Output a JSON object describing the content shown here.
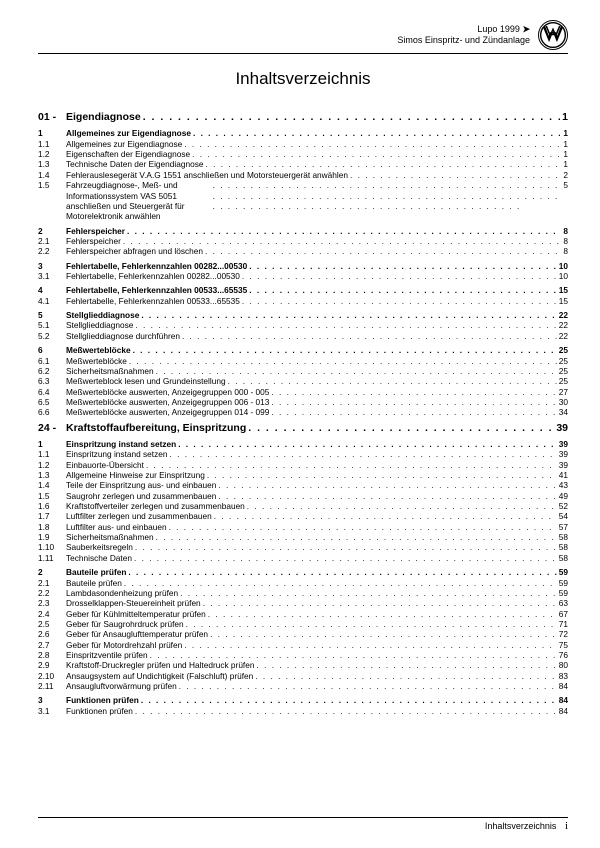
{
  "header": {
    "line1_model": "Lupo 1999",
    "line1_arrow": "➤",
    "line2": "Simos Einspritz- und Zündanlage"
  },
  "title": "Inhaltsverzeichnis",
  "footer": {
    "label": "Inhaltsverzeichnis",
    "page_symbol": "i"
  },
  "chapters": [
    {
      "num": "01 -",
      "label": "Eigendiagnose",
      "page": "1",
      "sections": [
        {
          "head": true,
          "num": "1",
          "label": "Allgemeines zur Eigendiagnose",
          "page": "1",
          "items": [
            {
              "num": "1.1",
              "label": "Allgemeines zur Eigendiagnose",
              "page": "1"
            },
            {
              "num": "1.2",
              "label": "Eigenschaften der Eigendiagnose",
              "page": "1"
            },
            {
              "num": "1.3",
              "label": "Technische Daten der Eigendiagnose",
              "page": "1"
            },
            {
              "num": "1.4",
              "label": "Fehlerauslesegerät V.A.G 1551 anschließen und Motorsteuergerät anwählen",
              "page": "2"
            },
            {
              "num": "1.5",
              "label": "Fahrzeugdiagnose-, Meß- und Informationssystem VAS 5051 anschließen und Steuergerät für Motorelektronik anwählen",
              "page": "5",
              "wrap": true
            }
          ]
        },
        {
          "head": true,
          "num": "2",
          "label": "Fehlerspeicher",
          "page": "8",
          "items": [
            {
              "num": "2.1",
              "label": "Fehlerspeicher",
              "page": "8"
            },
            {
              "num": "2.2",
              "label": "Fehlerspeicher abfragen und löschen",
              "page": "8"
            }
          ]
        },
        {
          "head": true,
          "num": "3",
          "label": "Fehlertabelle, Fehlerkennzahlen 00282...00530",
          "page": "10",
          "items": [
            {
              "num": "3.1",
              "label": "Fehlertabelle, Fehlerkennzahlen 00282...00530",
              "page": "10"
            }
          ]
        },
        {
          "head": true,
          "num": "4",
          "label": "Fehlertabelle, Fehlerkennzahlen 00533...65535",
          "page": "15",
          "items": [
            {
              "num": "4.1",
              "label": "Fehlertabelle, Fehlerkennzahlen 00533...65535",
              "page": "15"
            }
          ]
        },
        {
          "head": true,
          "num": "5",
          "label": "Stellglieddiagnose",
          "page": "22",
          "items": [
            {
              "num": "5.1",
              "label": "Stellglieddiagnose",
              "page": "22"
            },
            {
              "num": "5.2",
              "label": "Stellglieddiagnose durchführen",
              "page": "22"
            }
          ]
        },
        {
          "head": true,
          "num": "6",
          "label": "Meßwerteblöcke",
          "page": "25",
          "items": [
            {
              "num": "6.1",
              "label": "Meßwerteblöcke",
              "page": "25"
            },
            {
              "num": "6.2",
              "label": "Sicherheitsmaßnahmen",
              "page": "25"
            },
            {
              "num": "6.3",
              "label": "Meßwerteblock lesen und Grundeinstellung",
              "page": "25"
            },
            {
              "num": "6.4",
              "label": "Meßwerteblöcke auswerten, Anzeigegruppen 000 - 005",
              "page": "27"
            },
            {
              "num": "6.5",
              "label": "Meßwerteblöcke auswerten, Anzeigegruppen 006 - 013",
              "page": "30"
            },
            {
              "num": "6.6",
              "label": "Meßwerteblöcke auswerten, Anzeigegruppen 014 - 099",
              "page": "34"
            }
          ]
        }
      ]
    },
    {
      "num": "24 -",
      "label": "Kraftstoffaufbereitung, Einspritzung",
      "page": "39",
      "sections": [
        {
          "head": true,
          "num": "1",
          "label": "Einspritzung instand setzen",
          "page": "39",
          "items": [
            {
              "num": "1.1",
              "label": "Einspritzung instand setzen",
              "page": "39"
            },
            {
              "num": "1.2",
              "label": "Einbauorte-Übersicht",
              "page": "39"
            },
            {
              "num": "1.3",
              "label": "Allgemeine Hinweise zur Einspritzung",
              "page": "41"
            },
            {
              "num": "1.4",
              "label": "Teile der Einspritzung aus- und einbauen",
              "page": "43"
            },
            {
              "num": "1.5",
              "label": "Saugrohr zerlegen und zusammenbauen",
              "page": "49"
            },
            {
              "num": "1.6",
              "label": "Kraftstoffverteiler zerlegen und zusammenbauen",
              "page": "52"
            },
            {
              "num": "1.7",
              "label": "Luftfilter zerlegen und zusammenbauen",
              "page": "54"
            },
            {
              "num": "1.8",
              "label": "Luftfilter aus- und einbauen",
              "page": "57"
            },
            {
              "num": "1.9",
              "label": "Sicherheitsmaßnahmen",
              "page": "58"
            },
            {
              "num": "1.10",
              "label": "Sauberkeitsregeln",
              "page": "58"
            },
            {
              "num": "1.11",
              "label": "Technische Daten",
              "page": "58"
            }
          ]
        },
        {
          "head": true,
          "num": "2",
          "label": "Bauteile prüfen",
          "page": "59",
          "items": [
            {
              "num": "2.1",
              "label": "Bauteile prüfen",
              "page": "59"
            },
            {
              "num": "2.2",
              "label": "Lambdasondenheizung prüfen",
              "page": "59"
            },
            {
              "num": "2.3",
              "label": "Drosselklappen-Steuereinheit prüfen",
              "page": "63"
            },
            {
              "num": "2.4",
              "label": "Geber für Kühlmitteltemperatur prüfen",
              "page": "67"
            },
            {
              "num": "2.5",
              "label": "Geber für Saugrohrdruck prüfen",
              "page": "71"
            },
            {
              "num": "2.6",
              "label": "Geber für Ansauglufttemperatur prüfen",
              "page": "72"
            },
            {
              "num": "2.7",
              "label": "Geber für Motordrehzahl prüfen",
              "page": "75"
            },
            {
              "num": "2.8",
              "label": "Einspritzventile prüfen",
              "page": "76"
            },
            {
              "num": "2.9",
              "label": "Kraftstoff-Druckregler prüfen und Haltedruck prüfen",
              "page": "80"
            },
            {
              "num": "2.10",
              "label": "Ansaugsystem auf Undichtigkeit (Falschluft) prüfen",
              "page": "83"
            },
            {
              "num": "2.11",
              "label": "Ansaugluftvorwärmung prüfen",
              "page": "84"
            }
          ]
        },
        {
          "head": true,
          "num": "3",
          "label": "Funktionen prüfen",
          "page": "84",
          "items": [
            {
              "num": "3.1",
              "label": "Funktionen prüfen",
              "page": "84"
            }
          ]
        }
      ]
    }
  ]
}
